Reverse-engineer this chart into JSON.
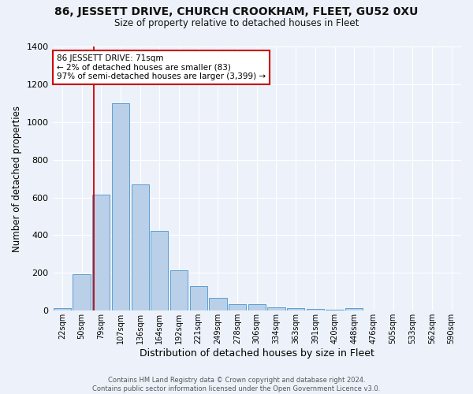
{
  "title": "86, JESSETT DRIVE, CHURCH CROOKHAM, FLEET, GU52 0XU",
  "subtitle": "Size of property relative to detached houses in Fleet",
  "xlabel": "Distribution of detached houses by size in Fleet",
  "ylabel": "Number of detached properties",
  "footer_line1": "Contains HM Land Registry data © Crown copyright and database right 2024.",
  "footer_line2": "Contains public sector information licensed under the Open Government Licence v3.0.",
  "annotation_line1": "86 JESSETT DRIVE: 71sqm",
  "annotation_line2": "← 2% of detached houses are smaller (83)",
  "annotation_line3": "97% of semi-detached houses are larger (3,399) →",
  "bar_labels": [
    "22sqm",
    "50sqm",
    "79sqm",
    "107sqm",
    "136sqm",
    "164sqm",
    "192sqm",
    "221sqm",
    "249sqm",
    "278sqm",
    "306sqm",
    "334sqm",
    "363sqm",
    "391sqm",
    "420sqm",
    "448sqm",
    "476sqm",
    "505sqm",
    "533sqm",
    "562sqm",
    "590sqm"
  ],
  "bar_values": [
    15,
    195,
    615,
    1100,
    670,
    425,
    215,
    130,
    70,
    33,
    33,
    20,
    13,
    10,
    5,
    12,
    0,
    0,
    0,
    0,
    0
  ],
  "bar_color": "#bad0e8",
  "bar_edge_color": "#5a9fd4",
  "bg_color": "#edf2fa",
  "grid_color": "#ffffff",
  "annotation_box_color": "#ffffff",
  "annotation_box_edge": "#cc0000",
  "ylim": [
    0,
    1400
  ],
  "red_line_index": 1.64
}
